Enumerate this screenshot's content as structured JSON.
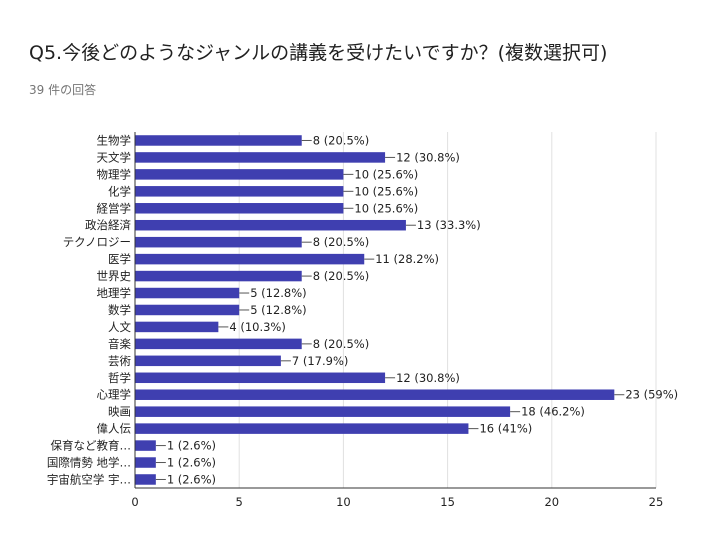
{
  "header": {
    "title": "Q5.今後どのようなジャンルの講義を受けたいですか？(複数選択可)",
    "subtitle": "39 件の回答"
  },
  "colors": {
    "bar": "#3f3fb0",
    "grid": "#e0e0e0",
    "axis": "#333333"
  },
  "chart_data": {
    "type": "bar",
    "orientation": "horizontal",
    "categories": [
      "生物学",
      "天文学",
      "物理学",
      "化学",
      "経営学",
      "政治経済",
      "テクノロジー",
      "医学",
      "世界史",
      "地理学",
      "数学",
      "人文",
      "音楽",
      "芸術",
      "哲学",
      "心理学",
      "映画",
      "偉人伝",
      "保育など教育…",
      "国際情勢 地学…",
      "宇宙航空学 宇…"
    ],
    "values": [
      8,
      12,
      10,
      10,
      10,
      13,
      8,
      11,
      8,
      5,
      5,
      4,
      8,
      7,
      12,
      23,
      18,
      16,
      1,
      1,
      1
    ],
    "data_labels": [
      "8 (20.5%)",
      "12 (30.8%)",
      "10 (25.6%)",
      "10 (25.6%)",
      "10 (25.6%)",
      "13 (33.3%)",
      "8 (20.5%)",
      "11 (28.2%)",
      "8 (20.5%)",
      "5 (12.8%)",
      "5 (12.8%)",
      "4 (10.3%)",
      "8 (20.5%)",
      "7 (17.9%)",
      "12 (30.8%)",
      "23 (59%)",
      "18 (46.2%)",
      "16 (41%)",
      "1 (2.6%)",
      "1 (2.6%)",
      "1 (2.6%)"
    ],
    "xlim": [
      0,
      25
    ],
    "xticks": [
      0,
      5,
      10,
      15,
      20,
      25
    ],
    "grid": true
  }
}
